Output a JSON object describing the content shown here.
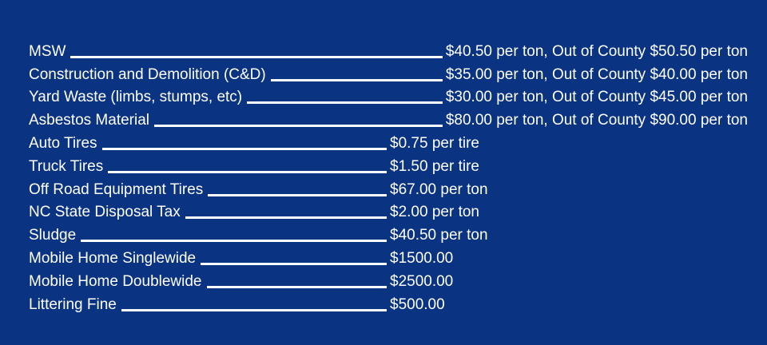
{
  "fees": [
    {
      "item": "MSW",
      "price": "$40.50 per ton, Out of County $50.50 per ton"
    },
    {
      "item": "Construction and Demolition (C&D)",
      "price": "$35.00 per ton, Out of County $40.00 per ton"
    },
    {
      "item": "Yard Waste (limbs, stumps, etc)",
      "price": "$30.00 per ton, Out of County $45.00 per ton"
    },
    {
      "item": "Asbestos Material",
      "price": "$80.00 per ton, Out of County $90.00 per ton"
    },
    {
      "item": "Auto Tires",
      "price": "$0.75 per tire"
    },
    {
      "item": "Truck Tires",
      "price": "$1.50 per tire"
    },
    {
      "item": "Off Road Equipment Tires",
      "price": "$67.00 per ton"
    },
    {
      "item": "NC State Disposal Tax",
      "price": "$2.00 per ton"
    },
    {
      "item": "Sludge",
      "price": "$40.50 per ton"
    },
    {
      "item": "Mobile Home Singlewide",
      "price": "$1500.00"
    },
    {
      "item": "Mobile Home Doublewide",
      "price": "$2500.00"
    },
    {
      "item": "Littering Fine",
      "price": "$500.00"
    }
  ]
}
